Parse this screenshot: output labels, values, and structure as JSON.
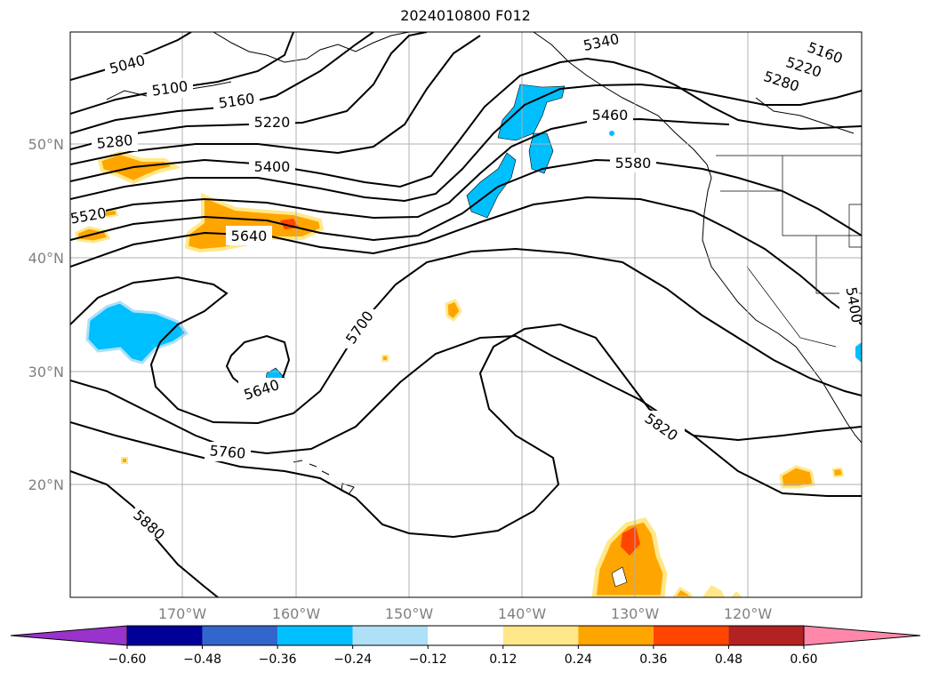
{
  "title": "2024010800 F012",
  "map": {
    "lat_labels": [
      "50°N",
      "40°N",
      "30°N",
      "20°N"
    ],
    "lon_labels": [
      "170°W",
      "160°W",
      "150°W",
      "140°W",
      "130°W",
      "120°W"
    ],
    "contour_labels": [
      "5040",
      "5100",
      "5160",
      "5220",
      "5280",
      "5400",
      "5520",
      "5640",
      "5340",
      "5460",
      "5580",
      "5160",
      "5220",
      "5280",
      "5400",
      "5700",
      "5640",
      "5760",
      "5820",
      "5880"
    ]
  },
  "colorbar": {
    "ticks": [
      "−0.60",
      "−0.48",
      "−0.36",
      "−0.24",
      "−0.12",
      "0.12",
      "0.24",
      "0.36",
      "0.48",
      "0.60"
    ],
    "colors": [
      "#9933cc",
      "#000099",
      "#3366cc",
      "#00bfff",
      "#aee0f7",
      "#ffffff",
      "#ffe88a",
      "#ffa500",
      "#ff4500",
      "#b22222",
      "#ff88aa"
    ]
  }
}
